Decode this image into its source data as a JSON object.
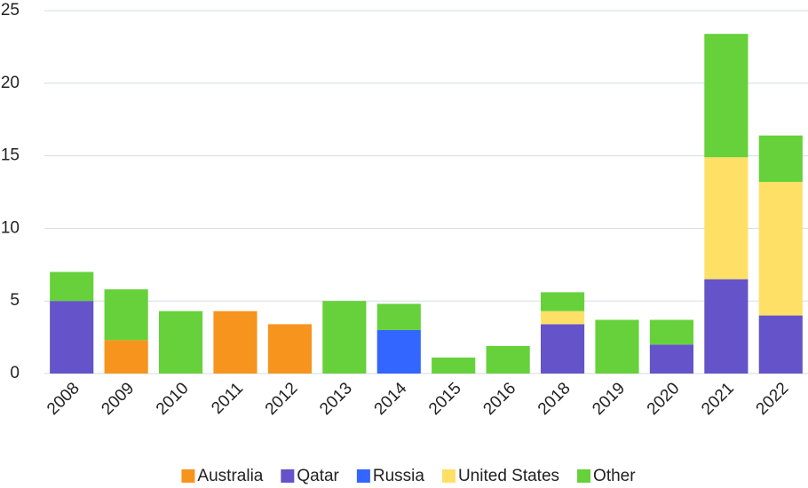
{
  "chart_data": {
    "type": "stacked_bar",
    "categories": [
      "2008",
      "2009",
      "2010",
      "2011",
      "2012",
      "2013",
      "2014",
      "2015",
      "2016",
      "2018",
      "2019",
      "2020",
      "2021",
      "2022"
    ],
    "series": [
      {
        "name": "Australia",
        "color": "#f7941d",
        "values": [
          null,
          2.3,
          null,
          4.3,
          3.4,
          null,
          null,
          null,
          null,
          null,
          null,
          null,
          null,
          null
        ]
      },
      {
        "name": "Qatar",
        "color": "#6553c9",
        "values": [
          5.0,
          null,
          null,
          null,
          null,
          null,
          null,
          null,
          null,
          3.4,
          null,
          2.0,
          6.5,
          4.0
        ]
      },
      {
        "name": "Russia",
        "color": "#3366ff",
        "values": [
          null,
          null,
          null,
          null,
          null,
          null,
          3.0,
          null,
          null,
          null,
          null,
          null,
          null,
          null
        ]
      },
      {
        "name": "United States",
        "color": "#ffe066",
        "values": [
          null,
          null,
          null,
          null,
          null,
          null,
          null,
          null,
          null,
          0.9,
          null,
          null,
          8.4,
          9.2
        ]
      },
      {
        "name": "Other",
        "color": "#66d13a",
        "values": [
          2.0,
          3.5,
          4.3,
          null,
          null,
          5.0,
          1.8,
          1.1,
          1.9,
          1.3,
          3.7,
          1.7,
          8.5,
          3.2
        ]
      }
    ],
    "ylim": [
      0,
      25
    ],
    "yticks": [
      0,
      5,
      10,
      15,
      20,
      25
    ],
    "grid": true,
    "legend": "bottom"
  }
}
